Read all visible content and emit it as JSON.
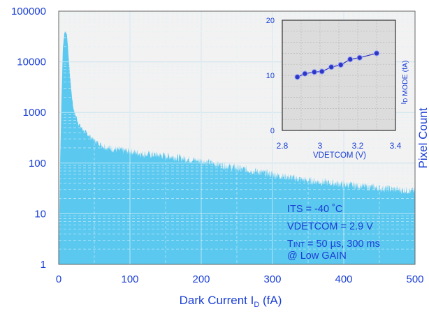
{
  "colors": {
    "plot_bg": "#f2f2f2",
    "histogram_fill": "#5bc8ef",
    "grid": "#9fcbe0",
    "axis_text": "#000000",
    "label_blue": "#1a3fd6",
    "inset_bg": "#dcdcdc",
    "inset_marker": "#2f35c4"
  },
  "chart_data": [
    {
      "type": "area",
      "chart_role": "main",
      "xlabel": "Dark Current I",
      "xlabel_sub": "D",
      "xlabel_unit": " (fA)",
      "ylabel": "Pixel Count",
      "xlim": [
        0,
        500
      ],
      "ylim": [
        1,
        100000
      ],
      "yscale": "log",
      "x_ticks": [
        "0",
        "100",
        "200",
        "300",
        "400",
        "500"
      ],
      "y_ticks": [
        "1",
        "10",
        "100",
        "1000",
        "10000",
        "100000"
      ],
      "grid": true,
      "series": [
        {
          "x": [
            0,
            2,
            4,
            6,
            8,
            10,
            12,
            14,
            16,
            18,
            20,
            22,
            25,
            28,
            32,
            36,
            40,
            50,
            60,
            70,
            80,
            100,
            120,
            150,
            180,
            200,
            250,
            300,
            350,
            400,
            450,
            500
          ],
          "values": [
            1,
            100,
            2000,
            20000,
            38000,
            40000,
            30000,
            12000,
            5000,
            2500,
            1400,
            1000,
            800,
            600,
            500,
            420,
            380,
            280,
            230,
            200,
            185,
            170,
            150,
            140,
            120,
            110,
            80,
            60,
            45,
            38,
            32,
            28
          ]
        }
      ],
      "annotations": [
        "ITS = -40 ˚C",
        "VDETCOM = 2.9 V",
        "T",
        "INT",
        " = 50 µs, 300 ms",
        "@ Low GAIN"
      ]
    },
    {
      "type": "line",
      "chart_role": "inset",
      "xlabel": "VDETCOM (V)",
      "ylabel": "I",
      "ylabel_sub": "D",
      "ylabel_rest": " MODE (fA)",
      "xlim": [
        2.8,
        3.4
      ],
      "ylim": [
        0,
        20
      ],
      "x_ticks": [
        "2.8",
        "3",
        "3.2",
        "3.4"
      ],
      "y_ticks": [
        "0",
        "10",
        "20"
      ],
      "grid": true,
      "series": [
        {
          "x": [
            2.88,
            2.92,
            2.97,
            3.01,
            3.06,
            3.11,
            3.16,
            3.21,
            3.3
          ],
          "values": [
            9.7,
            10.3,
            10.6,
            10.7,
            11.5,
            11.9,
            12.9,
            13.2,
            14.0
          ]
        }
      ]
    }
  ]
}
